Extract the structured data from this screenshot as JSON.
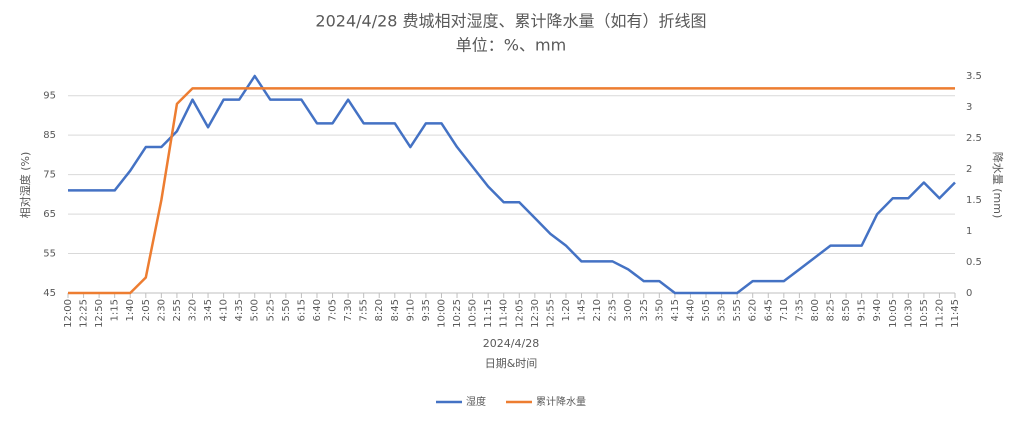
{
  "chart_data": {
    "type": "line",
    "title": "2024/4/28 费城相对湿度、累计降水量（如有）折线图",
    "subtitle": "单位：%、mm",
    "x_label_top": "2024/4/28",
    "x_label": "日期&时间",
    "y_label": "相对湿度 (%)",
    "y2_label": "降水量 (mm)",
    "categories": [
      "12:00",
      "12:25",
      "12:50",
      "1:15",
      "1:40",
      "2:05",
      "2:30",
      "2:55",
      "3:20",
      "3:45",
      "4:10",
      "4:35",
      "5:00",
      "5:25",
      "5:50",
      "6:15",
      "6:40",
      "7:05",
      "7:30",
      "7:55",
      "8:20",
      "8:45",
      "9:10",
      "9:35",
      "10:00",
      "10:25",
      "10:50",
      "11:15",
      "11:40",
      "12:05",
      "12:30",
      "12:55",
      "1:20",
      "1:45",
      "2:10",
      "2:35",
      "3:00",
      "3:25",
      "3:50",
      "4:15",
      "4:40",
      "5:05",
      "5:30",
      "5:55",
      "6:20",
      "6:45",
      "7:10",
      "7:35",
      "8:00",
      "8:25",
      "8:50",
      "9:15",
      "9:40",
      "10:05",
      "10:30",
      "10:55",
      "11:20",
      "11:45"
    ],
    "series": [
      {
        "name": "湿度",
        "color": "#4472c4",
        "axis": "y",
        "values": [
          71,
          71,
          71,
          71,
          76,
          82,
          82,
          86,
          94,
          87,
          94,
          94,
          100,
          94,
          94,
          94,
          88,
          88,
          94,
          88,
          88,
          88,
          82,
          88,
          88,
          82,
          77,
          72,
          68,
          68,
          64,
          60,
          57,
          53,
          53,
          53,
          51,
          48,
          48,
          45,
          45,
          45,
          45,
          45,
          48,
          48,
          48,
          51,
          54,
          57,
          57,
          57,
          65,
          69,
          69,
          73,
          69,
          73
        ]
      },
      {
        "name": "累计降水量",
        "color": "#ed7d31",
        "axis": "y2",
        "values": [
          0,
          0,
          0,
          0,
          0,
          0.25,
          1.5,
          3.05,
          3.3,
          3.3,
          3.3,
          3.3,
          3.3,
          3.3,
          3.3,
          3.3,
          3.3,
          3.3,
          3.3,
          3.3,
          3.3,
          3.3,
          3.3,
          3.3,
          3.3,
          3.3,
          3.3,
          3.3,
          3.3,
          3.3,
          3.3,
          3.3,
          3.3,
          3.3,
          3.3,
          3.3,
          3.3,
          3.3,
          3.3,
          3.3,
          3.3,
          3.3,
          3.3,
          3.3,
          3.3,
          3.3,
          3.3,
          3.3,
          3.3,
          3.3,
          3.3,
          3.3,
          3.3,
          3.3,
          3.3,
          3.3,
          3.3,
          3.3
        ]
      }
    ],
    "ylim": [
      45,
      100
    ],
    "yticks": [
      45,
      55,
      65,
      75,
      85,
      95
    ],
    "y2lim": [
      0,
      3.5
    ],
    "y2ticks": [
      0,
      0.5,
      1,
      1.5,
      2,
      2.5,
      3,
      3.5
    ],
    "grid": true,
    "legend": "bottom"
  }
}
